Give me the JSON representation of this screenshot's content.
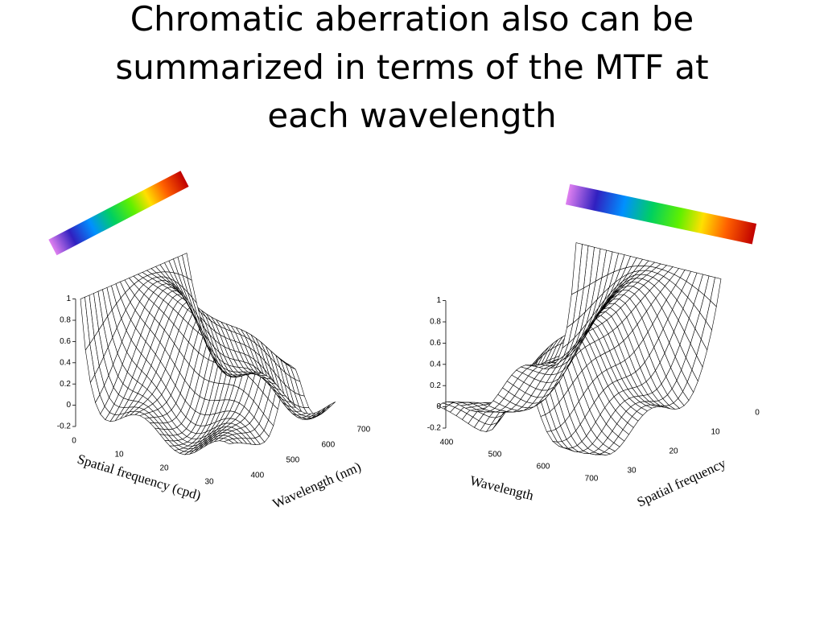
{
  "title_lines": [
    "Chromatic aberration also can be",
    "summarized in terms of the MTF at",
    "each wavelength"
  ],
  "plots": [
    {
      "z_ticks": [
        1,
        0.8,
        0.6,
        0.4,
        0.2,
        0,
        -0.2
      ],
      "frequency_ticks": [
        0,
        10,
        20,
        30
      ],
      "wavelength_ticks": [
        400,
        500,
        600,
        700
      ],
      "frequency_label": "Spatial frequency (cpd)",
      "wavelength_label": "Wavelength (nm)"
    },
    {
      "z_ticks": [
        1,
        0.8,
        0.6,
        0.4,
        0.2,
        0,
        -0.2
      ],
      "frequency_ticks": [
        0,
        10,
        20,
        30
      ],
      "wavelength_ticks": [
        400,
        500,
        600,
        700
      ],
      "frequency_label": "Spatial frequency",
      "wavelength_label": "Wavelength"
    }
  ]
}
